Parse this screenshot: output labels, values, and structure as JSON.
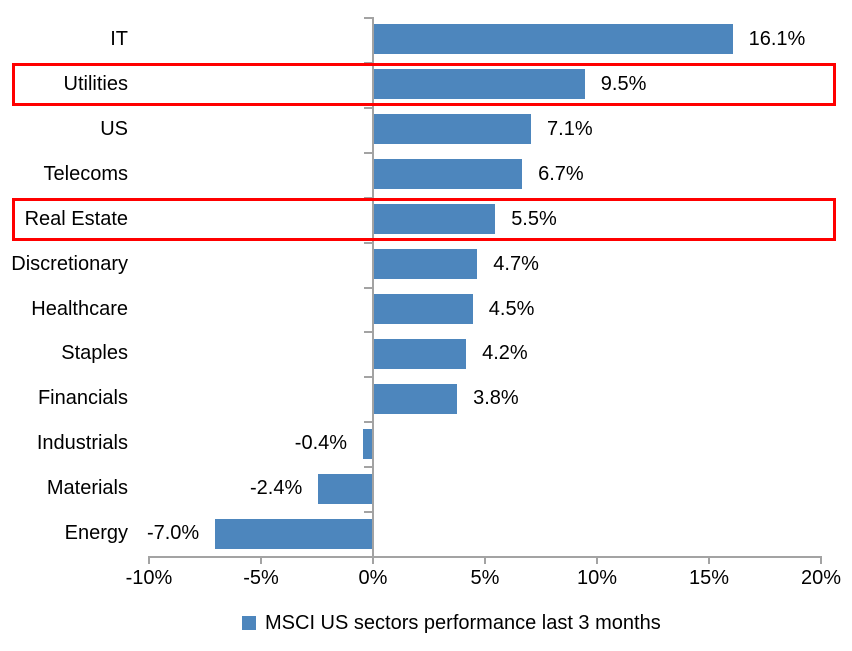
{
  "chart_data": {
    "type": "bar",
    "orientation": "horizontal",
    "title": "",
    "categories": [
      "IT",
      "Utilities",
      "US",
      "Telecoms",
      "Real Estate",
      "Discretionary",
      "Healthcare",
      "Staples",
      "Financials",
      "Industrials",
      "Materials",
      "Energy"
    ],
    "values": [
      16.1,
      9.5,
      7.1,
      6.7,
      5.5,
      4.7,
      4.5,
      4.2,
      3.8,
      -0.4,
      -2.4,
      -7.0
    ],
    "value_labels": [
      "16.1%",
      "9.5%",
      "7.1%",
      "6.7%",
      "5.5%",
      "4.7%",
      "4.5%",
      "4.2%",
      "3.8%",
      "-0.4%",
      "-2.4%",
      "-7.0%"
    ],
    "x_ticks": [
      {
        "label": "-10%",
        "value": -10
      },
      {
        "label": "-5%",
        "value": -5
      },
      {
        "label": "0%",
        "value": 0
      },
      {
        "label": "5%",
        "value": 5
      },
      {
        "label": "10%",
        "value": 10
      },
      {
        "label": "15%",
        "value": 15
      },
      {
        "label": "20%",
        "value": 20
      }
    ],
    "xlim": [
      -10,
      20
    ],
    "grid": false,
    "bar_color": "#4d86bd",
    "axis_color": "#a3a3a3",
    "highlight_color": "#ff0000",
    "highlighted_categories": [
      "Utilities",
      "Real Estate"
    ],
    "legend_position": "bottom",
    "legend": [
      {
        "label": "MSCI US sectors performance last 3 months",
        "color": "#4d86bd"
      }
    ]
  }
}
